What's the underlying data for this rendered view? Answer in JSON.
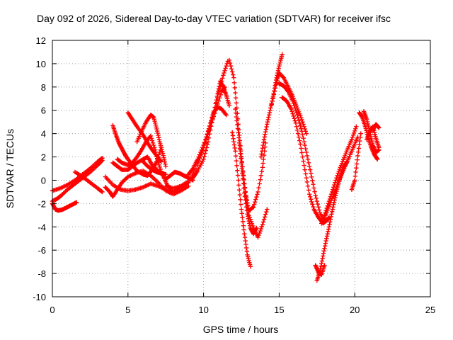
{
  "chart_data": {
    "type": "scatter",
    "title": "Day 092 of 2026, Sidereal Day-to-day VTEC variation (SDTVAR) for receiver ifsc",
    "xlabel": "GPS time / hours",
    "ylabel": "SDTVAR / TECUs",
    "xlim": [
      0,
      25
    ],
    "ylim": [
      -10,
      12
    ],
    "xticks": [
      "0",
      "5",
      "10",
      "15",
      "20",
      "25"
    ],
    "yticks": [
      "-10",
      "-8",
      "-6",
      "-4",
      "-2",
      "0",
      "2",
      "4",
      "6",
      "8",
      "10",
      "12"
    ],
    "grid": true,
    "marker": "+",
    "color": "#ff0000",
    "series": [
      {
        "x": [
          0,
          0.5,
          1,
          1.5,
          2,
          2.5,
          3,
          3.3
        ],
        "y": [
          -0.9,
          -0.7,
          -0.4,
          0,
          0.5,
          1,
          1.6,
          1.9
        ]
      },
      {
        "x": [
          0,
          0.3,
          0.6,
          1,
          1.5,
          2,
          2.5,
          3,
          3.3
        ],
        "y": [
          -1.8,
          -1.6,
          -1.3,
          -0.8,
          -0.3,
          0.2,
          0.7,
          1.3,
          1.7
        ]
      },
      {
        "x": [
          0,
          0.2,
          0.4,
          0.7,
          1,
          1.3,
          1.6
        ],
        "y": [
          -2,
          -2.5,
          -2.6,
          -2.5,
          -2.3,
          -2.1,
          -1.9
        ]
      },
      {
        "x": [
          1.5,
          2,
          2.5,
          3,
          3.3
        ],
        "y": [
          0.7,
          0.3,
          -0.2,
          -0.7,
          -1
        ]
      },
      {
        "x": [
          3.5,
          3.8,
          4,
          4.3,
          4.6,
          5,
          5.5,
          6,
          6.5,
          7,
          7.5,
          8,
          8.5,
          9
        ],
        "y": [
          -0.6,
          -1,
          -1.4,
          -0.8,
          -0.2,
          0.3,
          0.6,
          0.8,
          0.4,
          -0.2,
          -0.9,
          -1.2,
          -0.9,
          -0.5
        ]
      },
      {
        "x": [
          3.5,
          4,
          4.5,
          5,
          5.5,
          6,
          6.5,
          7,
          7.5,
          8,
          8.5,
          9
        ],
        "y": [
          0.3,
          -0.4,
          -0.8,
          -0.9,
          -0.8,
          -0.6,
          -0.3,
          -0.5,
          -0.8,
          -1,
          -0.6,
          -0.2
        ]
      },
      {
        "x": [
          4,
          4.3,
          4.6,
          5,
          5.3,
          5.6,
          6,
          6.3,
          6.6,
          7,
          7.3
        ],
        "y": [
          1.5,
          1.2,
          0.9,
          0.9,
          1.2,
          1.5,
          1.8,
          2,
          1.3,
          0.8,
          0.5
        ]
      },
      {
        "x": [
          4,
          4.2,
          4.4,
          4.6,
          4.8,
          5,
          5.3,
          5.6,
          6,
          6.3,
          6.6,
          6.9,
          7.2
        ],
        "y": [
          4.7,
          3.9,
          3.2,
          2.7,
          2.2,
          1.8,
          1.3,
          0.8,
          0.5,
          0.4,
          0.9,
          1.6,
          2.8
        ]
      },
      {
        "x": [
          4.3,
          4.6,
          5,
          5.3,
          5.6,
          5.9,
          6.2,
          6.5,
          6.8,
          7,
          7.3,
          7.6,
          7.9
        ],
        "y": [
          1.8,
          1.5,
          1.3,
          1.5,
          2,
          2.6,
          3.3,
          3.8,
          2.6,
          1.5,
          0.4,
          -0.4,
          -0.9
        ]
      },
      {
        "x": [
          5,
          5.3,
          5.6,
          6,
          6.3,
          6.6,
          6.9,
          7.2
        ],
        "y": [
          5.8,
          5.2,
          4.6,
          3.9,
          3.2,
          2.6,
          2.1,
          1.6
        ]
      },
      {
        "x": [
          5.6,
          5.9,
          6.2,
          6.5,
          6.7,
          6.9,
          7.1,
          7.3,
          7.5
        ],
        "y": [
          3.3,
          4.2,
          5,
          5.6,
          5.4,
          4.4,
          3.3,
          2.3,
          1.2
        ]
      },
      {
        "x": [
          6,
          6.3,
          6.6,
          6.9,
          7.2,
          7.5
        ],
        "y": [
          1.6,
          1.2,
          0.9,
          0.7,
          0.6,
          0.5
        ]
      },
      {
        "x": [
          7.5,
          7.8,
          8.1,
          8.4,
          8.7,
          9,
          9.3
        ],
        "y": [
          0.1,
          0.4,
          0.7,
          0.6,
          0.4,
          0.2,
          0
        ]
      },
      {
        "x": [
          7.5,
          8,
          8.5,
          9,
          9.5,
          10,
          10.5,
          11,
          11.3,
          11.6
        ],
        "y": [
          -0.5,
          -0.7,
          -0.5,
          -0.1,
          1,
          2.8,
          5,
          7.5,
          9,
          10.2
        ]
      },
      {
        "x": [
          9,
          9.3,
          9.6,
          10,
          10.4,
          10.8,
          11.2,
          11.4
        ],
        "y": [
          0.5,
          1,
          1.8,
          3,
          4.4,
          6,
          7.6,
          8
        ]
      },
      {
        "x": [
          9.3,
          9.6,
          10,
          10.3,
          10.6,
          10.9,
          11.1,
          11.3,
          11.5,
          11.7
        ],
        "y": [
          0.2,
          0.8,
          1.8,
          3.3,
          5.3,
          7.2,
          8.5,
          8,
          7.3,
          6.4
        ]
      },
      {
        "x": [
          9.6,
          10,
          10.3,
          10.6,
          10.9,
          11.2,
          11.5
        ],
        "y": [
          1.5,
          2.8,
          4.2,
          5.6,
          6.3,
          6.1,
          5.6
        ]
      },
      {
        "x": [
          11.7,
          12,
          12.2,
          12.4,
          12.6,
          12.8,
          13,
          13.3,
          13.6,
          13.9,
          14.1
        ],
        "y": [
          10.3,
          8.8,
          6.2,
          3.4,
          0.7,
          -1.3,
          -2.6,
          -2.3,
          -1,
          1.1,
          3.2
        ]
      },
      {
        "x": [
          11.9,
          12.1,
          12.3,
          12.5,
          12.7,
          12.9,
          13.1
        ],
        "y": [
          4.1,
          2.5,
          0,
          -2.5,
          -4.6,
          -6.4,
          -7.4
        ]
      },
      {
        "x": [
          12.1,
          12.3,
          12.5,
          12.7,
          12.9,
          13.1,
          13.3,
          13.5
        ],
        "y": [
          6.1,
          4.1,
          1.4,
          -1.1,
          -2.9,
          -4.1,
          -4.6,
          -4.1
        ]
      },
      {
        "x": [
          12.4,
          12.6,
          12.8,
          13,
          13.3,
          13.6,
          13.9,
          14.2
        ],
        "y": [
          3,
          0.8,
          -1.4,
          -3,
          -4.1,
          -4.9,
          -3.8,
          -2.5
        ]
      },
      {
        "x": [
          13.8,
          14,
          14.2,
          14.4,
          14.6,
          14.8,
          15,
          15.2
        ],
        "y": [
          2,
          3.5,
          4.8,
          6,
          7.2,
          8.6,
          9.8,
          10.8
        ]
      },
      {
        "x": [
          14.5,
          14.8,
          15,
          15.3,
          15.6,
          15.9,
          16.2,
          16.5,
          16.8
        ],
        "y": [
          6.5,
          8.2,
          9.2,
          8.8,
          8,
          7.2,
          6.2,
          5.2,
          4
        ]
      },
      {
        "x": [
          15,
          15.3,
          15.6,
          15.9,
          16.2,
          16.5,
          16.8,
          17.1,
          17.4,
          17.7,
          18,
          18.3
        ],
        "y": [
          8.3,
          8.1,
          7.6,
          6.8,
          5.6,
          4.2,
          2.4,
          0.6,
          -1.3,
          -2.8,
          -3.6,
          -3.2
        ]
      },
      {
        "x": [
          15.2,
          15.5,
          15.8,
          16.1,
          16.4,
          16.7,
          17,
          17.3,
          17.6,
          17.9,
          18.2
        ],
        "y": [
          7.1,
          6.8,
          6.1,
          4.9,
          3.1,
          0.9,
          -1.2,
          -2.5,
          -3.2,
          -3.7,
          -3.4
        ]
      },
      {
        "x": [
          17.5,
          17.7,
          17.9,
          18.1,
          18.3,
          18.5,
          18.7,
          18.9,
          19.1,
          19.3,
          19.5
        ],
        "y": [
          -8.6,
          -7.8,
          -6.5,
          -5.2,
          -4,
          -2.7,
          -1.5,
          -0.4,
          0.5,
          1.2,
          1.6
        ]
      },
      {
        "x": [
          17.4,
          17.6,
          17.8,
          18
        ],
        "y": [
          -7.3,
          -7.9,
          -8.1,
          -7.3
        ]
      },
      {
        "x": [
          18,
          18.3,
          18.6,
          18.9,
          19.2,
          19.5,
          19.8,
          20.1
        ],
        "y": [
          -3,
          -1.8,
          -0.6,
          0.6,
          1.6,
          2.6,
          3.5,
          4.6
        ]
      },
      {
        "x": [
          17.8,
          18.1,
          18.4,
          18.7,
          19,
          19.3,
          19.6,
          19.9,
          20.2
        ],
        "y": [
          -3.7,
          -2.9,
          -1.9,
          -0.9,
          0.1,
          1,
          1.9,
          2.8,
          3.7
        ]
      },
      {
        "x": [
          19.8,
          20,
          20.2,
          20.4
        ],
        "y": [
          -0.8,
          0,
          2.1,
          4
        ]
      },
      {
        "x": [
          20.3,
          20.5,
          20.7,
          20.9,
          21.1,
          21.3,
          21.5
        ],
        "y": [
          5.8,
          5.4,
          4.6,
          3.6,
          2.8,
          2.2,
          1.8
        ]
      },
      {
        "x": [
          20.6,
          20.8,
          21,
          21.2,
          21.4,
          21.6
        ],
        "y": [
          5.9,
          5.2,
          4.1,
          3,
          2.4,
          2.6
        ]
      },
      {
        "x": [
          20.8,
          21,
          21.2,
          21.4,
          21.6
        ],
        "y": [
          3.5,
          4.2,
          4.6,
          3.6,
          2.8
        ]
      },
      {
        "x": [
          21.2,
          21.4,
          21.6
        ],
        "y": [
          4.3,
          4.8,
          4.5
        ]
      }
    ]
  }
}
